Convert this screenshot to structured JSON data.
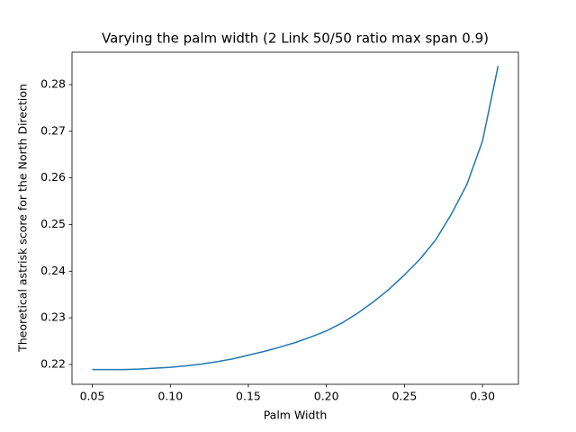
{
  "chart_data": {
    "type": "line",
    "title": "Varying the palm width (2 Link 50/50 ratio max span 0.9)",
    "xlabel": "Palm Width",
    "ylabel": "Theoretical astrisk score for the North Direction",
    "x": [
      0.05,
      0.06,
      0.07,
      0.08,
      0.09,
      0.1,
      0.11,
      0.12,
      0.13,
      0.14,
      0.15,
      0.16,
      0.17,
      0.18,
      0.19,
      0.2,
      0.21,
      0.22,
      0.23,
      0.24,
      0.25,
      0.26,
      0.27,
      0.28,
      0.29,
      0.3,
      0.31
    ],
    "series": [
      {
        "color": "#1f77b4",
        "values": [
          0.2189,
          0.2189,
          0.2189,
          0.219,
          0.2192,
          0.2194,
          0.2197,
          0.2201,
          0.2206,
          0.2212,
          0.222,
          0.2228,
          0.2237,
          0.2247,
          0.2259,
          0.2272,
          0.2289,
          0.231,
          0.2334,
          0.2361,
          0.2392,
          0.2426,
          0.2467,
          0.2522,
          0.2586,
          0.2679,
          0.284
        ]
      }
    ],
    "xlim": [
      0.037,
      0.323
    ],
    "ylim": [
      0.21575,
      0.28695
    ],
    "xticks": [
      0.05,
      {
        "value": 0.1,
        "label": "0.10"
      },
      0.15,
      {
        "value": 0.2,
        "label": "0.20"
      },
      0.25,
      {
        "value": 0.3,
        "label": "0.30"
      }
    ],
    "yticks": [
      0.22,
      0.23,
      0.24,
      0.25,
      0.26,
      0.27,
      0.28
    ],
    "grid": false
  }
}
